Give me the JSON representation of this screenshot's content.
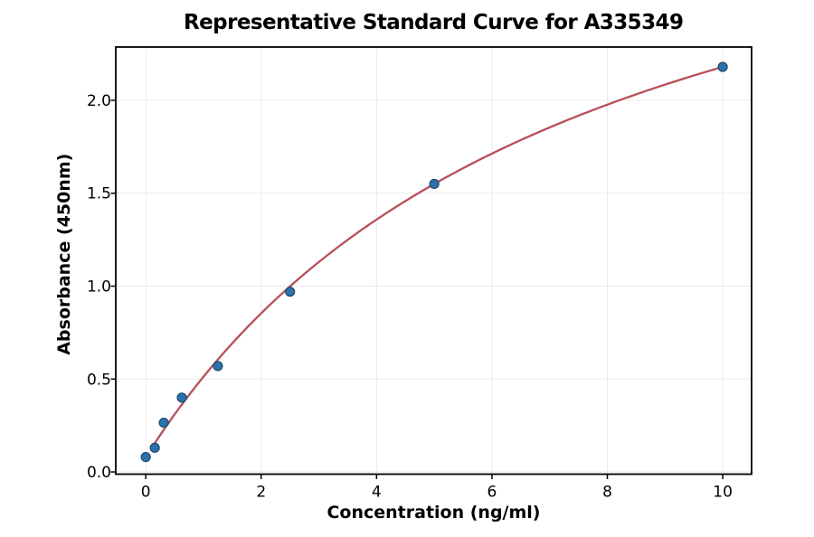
{
  "chart_data": {
    "type": "scatter",
    "title": "Representative Standard Curve for A335349",
    "xlabel": "Concentration (ng/ml)",
    "ylabel": "Absorbance (450nm)",
    "points": {
      "x": [
        0,
        0.156,
        0.3125,
        0.625,
        1.25,
        2.5,
        5,
        10
      ],
      "y": [
        0.08,
        0.13,
        0.265,
        0.4,
        0.57,
        0.97,
        1.55,
        2.18
      ]
    },
    "x_ticks": [
      0,
      2,
      4,
      6,
      8,
      10
    ],
    "y_ticks": [
      "0.0",
      "0.5",
      "1.0",
      "1.5",
      "2.0"
    ],
    "xlim": [
      -0.52,
      10.5
    ],
    "ylim": [
      -0.012,
      2.287
    ],
    "grid": true,
    "fit_curve": {
      "type": "saturation-fit",
      "a": 0.08,
      "d": 3.675,
      "c": 7.5,
      "x_start": 0.156,
      "x_end": 10
    },
    "colors": {
      "point_fill": "#2b72ac",
      "point_edge": "#1b4a70",
      "curve": "#b84f59",
      "grid": "#ebebeb",
      "spine": "#000000"
    }
  }
}
